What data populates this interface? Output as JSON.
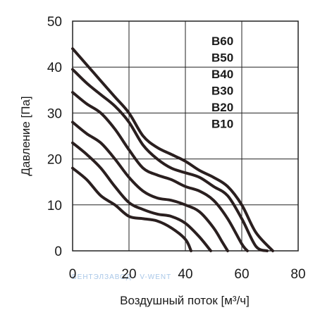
{
  "chart_data": {
    "type": "line",
    "title": "",
    "xlabel": "Воздушный поток [м³/ч]",
    "ylabel": "Давление [Па]",
    "xlim": [
      0,
      80
    ],
    "ylim": [
      0,
      50
    ],
    "xticks": [
      "0",
      "20",
      "40",
      "60",
      "80"
    ],
    "yticks": [
      "0",
      "10",
      "20",
      "30",
      "40",
      "50"
    ],
    "grid": true,
    "legend_position": "top-right",
    "line_color": "#2a1f1f",
    "series": [
      {
        "name": "B60",
        "points": [
          [
            0,
            44
          ],
          [
            5,
            40.5
          ],
          [
            10,
            37
          ],
          [
            15,
            33.5
          ],
          [
            20,
            30
          ],
          [
            25,
            25
          ],
          [
            30,
            22.5
          ],
          [
            35,
            21
          ],
          [
            40,
            19.5
          ],
          [
            45,
            17.5
          ],
          [
            50,
            16
          ],
          [
            55,
            14
          ],
          [
            60,
            10
          ],
          [
            65,
            4
          ],
          [
            71,
            0
          ]
        ]
      },
      {
        "name": "B50",
        "points": [
          [
            0,
            39.5
          ],
          [
            5,
            36.5
          ],
          [
            10,
            34
          ],
          [
            15,
            31.5
          ],
          [
            20,
            28
          ],
          [
            25,
            23
          ],
          [
            30,
            20
          ],
          [
            35,
            18
          ],
          [
            40,
            17
          ],
          [
            45,
            16
          ],
          [
            50,
            14
          ],
          [
            55,
            12
          ],
          [
            60,
            7
          ],
          [
            65,
            1
          ],
          [
            69,
            0
          ]
        ]
      },
      {
        "name": "B40",
        "points": [
          [
            0,
            34.5
          ],
          [
            5,
            32
          ],
          [
            10,
            30
          ],
          [
            15,
            26.5
          ],
          [
            20,
            22
          ],
          [
            25,
            18
          ],
          [
            30,
            16.5
          ],
          [
            35,
            15.5
          ],
          [
            40,
            14
          ],
          [
            45,
            13
          ],
          [
            50,
            11
          ],
          [
            55,
            7
          ],
          [
            60,
            1.5
          ],
          [
            62,
            0
          ]
        ]
      },
      {
        "name": "B30",
        "points": [
          [
            0,
            28
          ],
          [
            5,
            25.5
          ],
          [
            10,
            23.5
          ],
          [
            15,
            20
          ],
          [
            20,
            16
          ],
          [
            25,
            13
          ],
          [
            30,
            11.5
          ],
          [
            35,
            11
          ],
          [
            40,
            10
          ],
          [
            45,
            8.5
          ],
          [
            50,
            5
          ],
          [
            53,
            2
          ],
          [
            55,
            0
          ]
        ]
      },
      {
        "name": "B20",
        "points": [
          [
            0,
            23.5
          ],
          [
            5,
            21
          ],
          [
            10,
            18
          ],
          [
            15,
            14
          ],
          [
            20,
            10.5
          ],
          [
            25,
            9
          ],
          [
            30,
            8
          ],
          [
            35,
            7.5
          ],
          [
            40,
            6
          ],
          [
            45,
            3
          ],
          [
            49,
            0
          ]
        ]
      },
      {
        "name": "B10",
        "points": [
          [
            0,
            18
          ],
          [
            5,
            15.5
          ],
          [
            10,
            12
          ],
          [
            15,
            10
          ],
          [
            20,
            7.5
          ],
          [
            25,
            7
          ],
          [
            30,
            6.5
          ],
          [
            35,
            5
          ],
          [
            40,
            2.5
          ],
          [
            42,
            0
          ]
        ]
      }
    ]
  },
  "watermark": "ВЕНТЭЛЗАВОД · V-WENT"
}
